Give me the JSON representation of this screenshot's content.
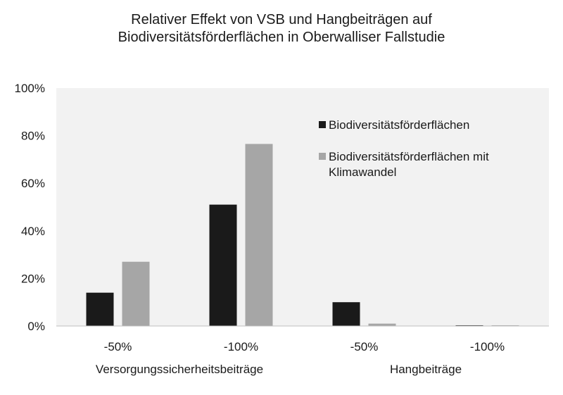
{
  "chart_data": {
    "type": "bar",
    "title": [
      "Relativer Effekt von VSB und Hangbeiträgen auf",
      "Biodiversitätsförderflächen in Oberwalliser Fallstudie"
    ],
    "xlabel": "",
    "ylabel": "",
    "ylim": [
      0,
      1
    ],
    "yticks": [
      "0%",
      "20%",
      "40%",
      "60%",
      "80%",
      "100%"
    ],
    "grid": false,
    "legend_position": "top-right",
    "categories": [
      "-50%",
      "-100%",
      "-50%",
      "-100%"
    ],
    "groups": [
      {
        "label": "Versorgungssicherheitsbeiträge",
        "categories": [
          "-50%",
          "-100%"
        ]
      },
      {
        "label": "Hangbeiträge",
        "categories": [
          "-50%",
          "-100%"
        ]
      }
    ],
    "series": [
      {
        "name": "Biodiversitätsförderflächen",
        "color": "#1a1a1a",
        "values": [
          0.14,
          0.51,
          0.1,
          0.003
        ]
      },
      {
        "name": "Biodiversitätsförderflächen mit Klimawandel",
        "color": "#a6a6a6",
        "values": [
          0.27,
          0.765,
          0.01,
          0.003
        ]
      }
    ]
  },
  "colors": {
    "plot_background": "#f2f2f2",
    "axis_line": "#bfbfbf"
  }
}
